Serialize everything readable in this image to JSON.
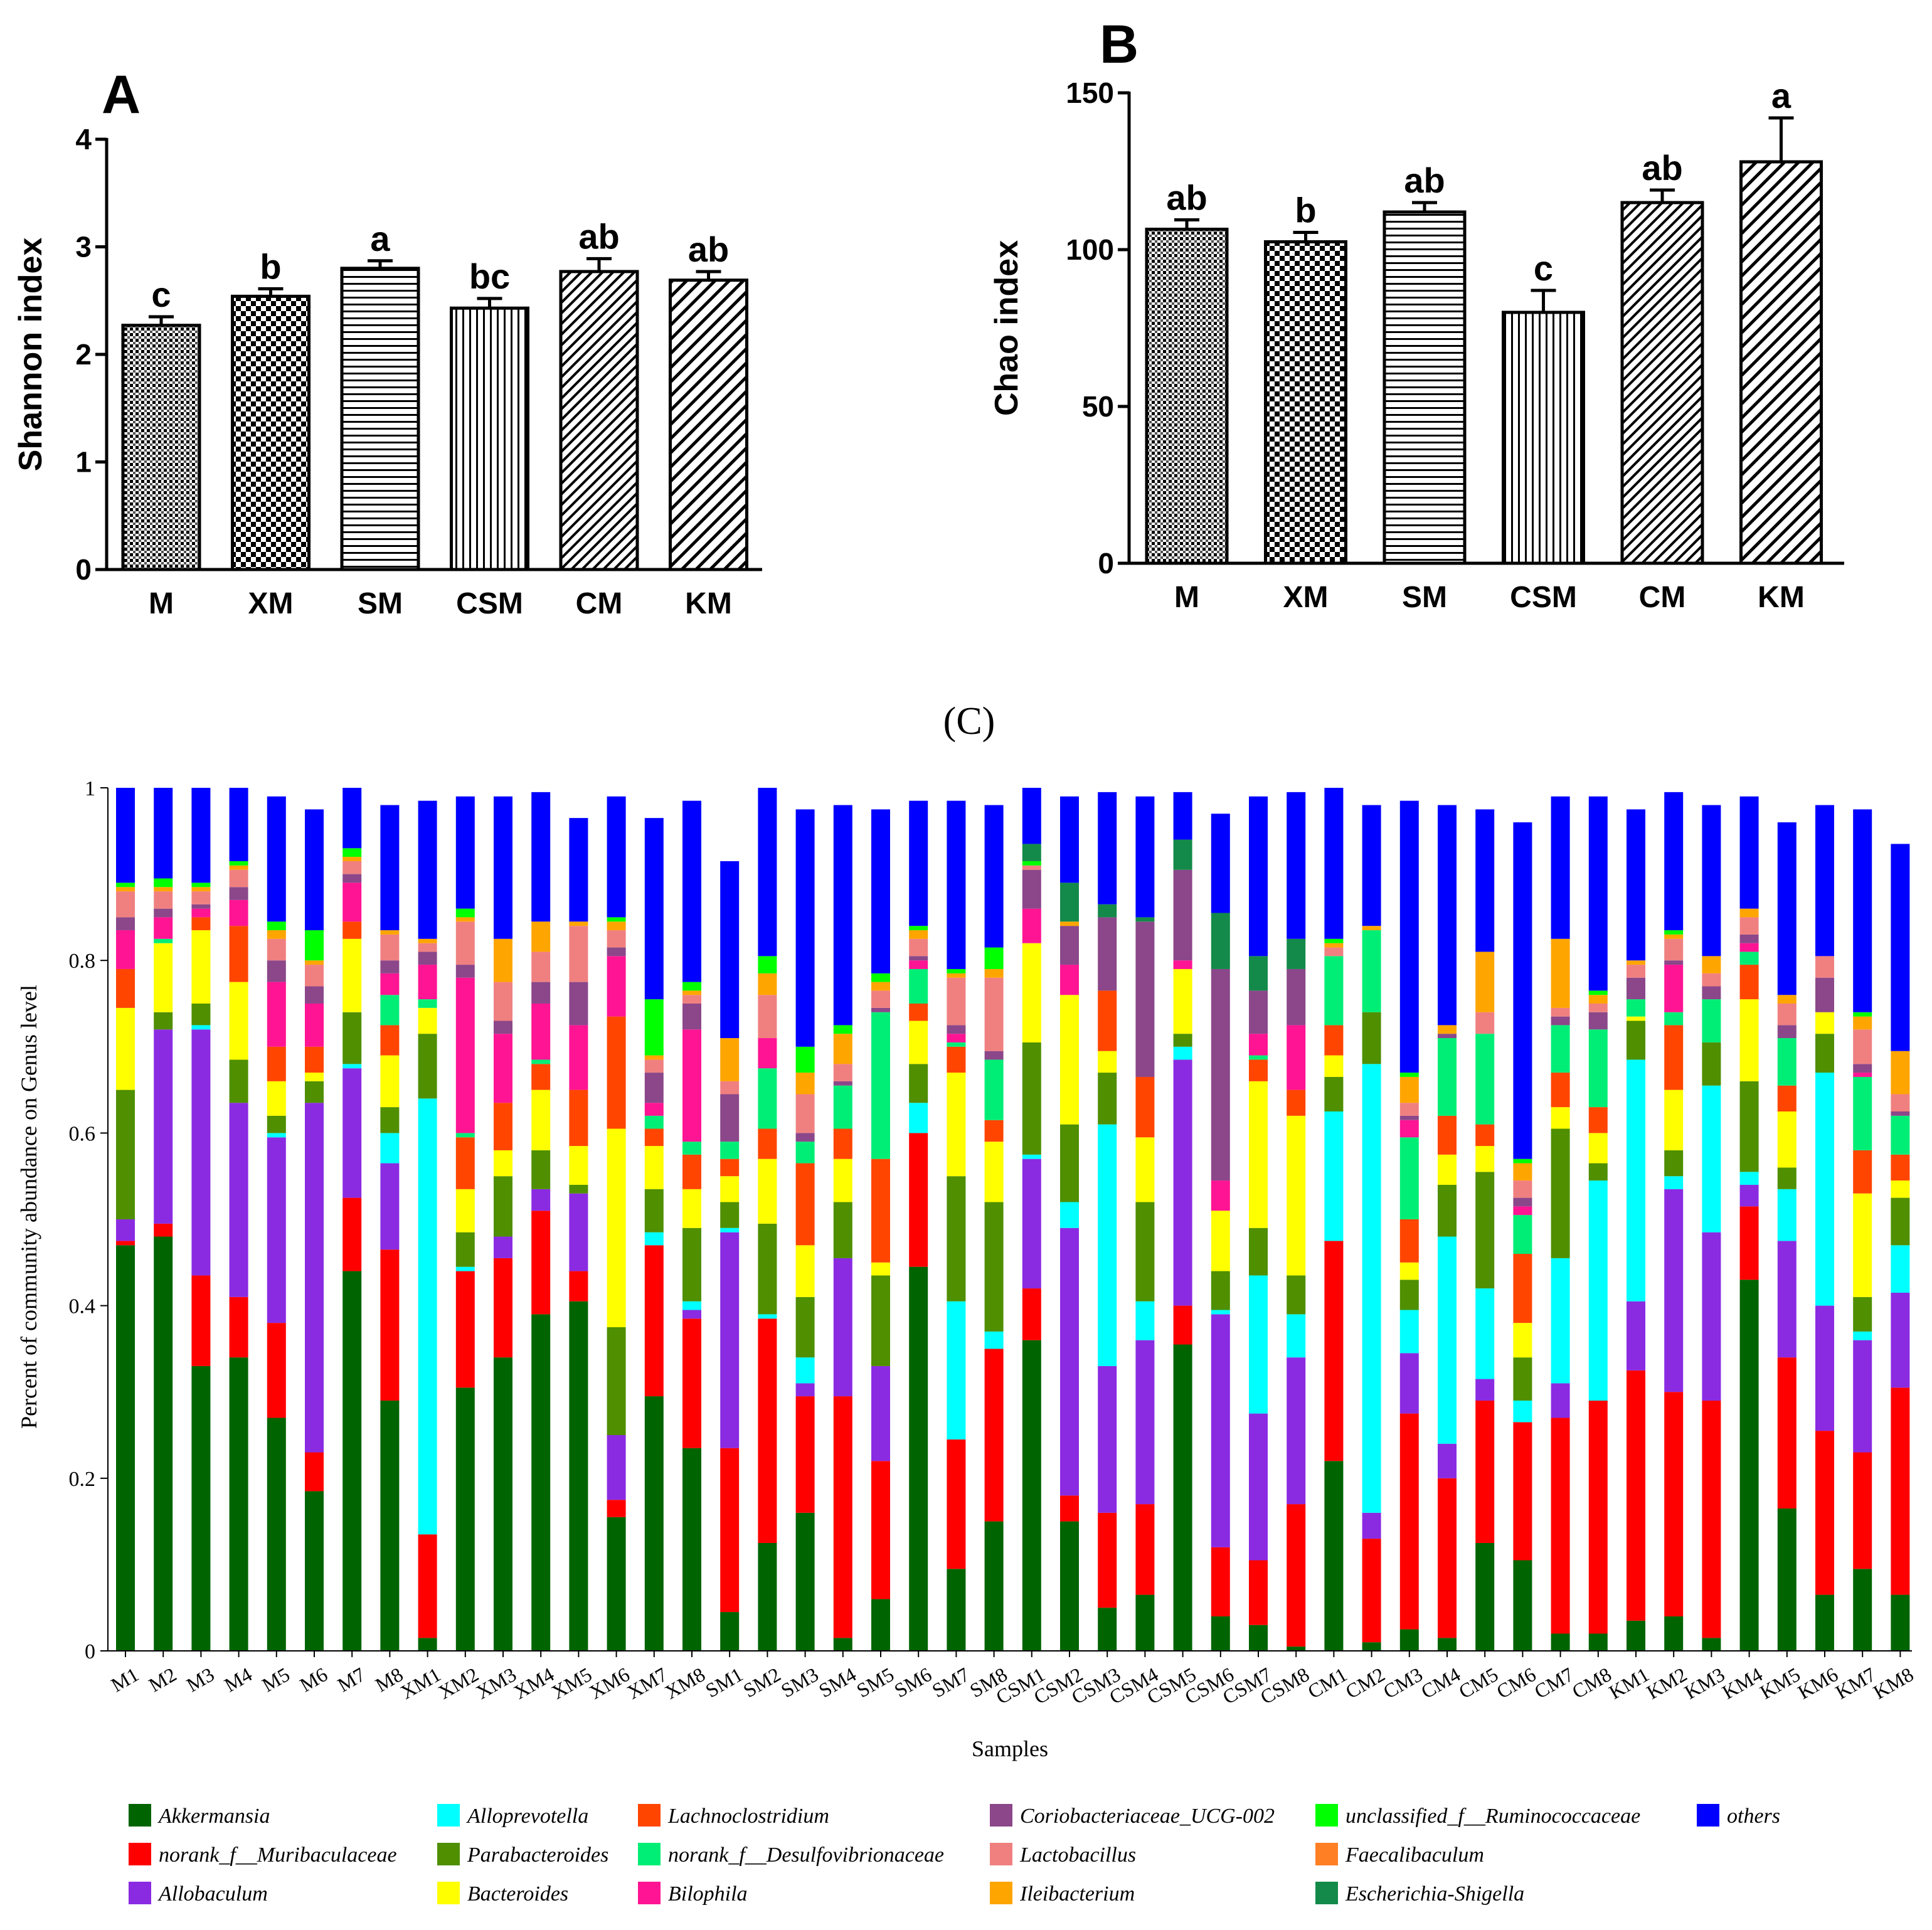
{
  "panel_a_label": "A",
  "panel_b_label": "B",
  "panel_c_label": "(C)",
  "chart_data": [
    {
      "id": "A",
      "type": "bar",
      "title": "",
      "xlabel": "",
      "ylabel": "Shannon index",
      "ylim": [
        0,
        4
      ],
      "yticks": [
        "0",
        "1",
        "2",
        "3",
        "4"
      ],
      "categories": [
        "M",
        "XM",
        "SM",
        "CSM",
        "CM",
        "KM"
      ],
      "values": [
        2.27,
        2.54,
        2.8,
        2.43,
        2.77,
        2.69
      ],
      "errors": [
        0.08,
        0.07,
        0.07,
        0.09,
        0.12,
        0.08
      ],
      "significance_letters": [
        "c",
        "b",
        "a",
        "bc",
        "ab",
        "ab"
      ],
      "patterns": [
        "pat-dense",
        "pat-check",
        "pat-hline",
        "pat-vline",
        "pat-diag",
        "pat-diag-wide"
      ]
    },
    {
      "id": "B",
      "type": "bar",
      "title": "",
      "xlabel": "",
      "ylabel": "Chao index",
      "ylim": [
        0,
        150
      ],
      "yticks": [
        "0",
        "50",
        "100",
        "150"
      ],
      "categories": [
        "M",
        "XM",
        "SM",
        "CSM",
        "CM",
        "KM"
      ],
      "values": [
        106.5,
        102.5,
        112,
        80,
        115,
        128
      ],
      "errors": [
        3,
        3,
        3,
        7,
        4,
        14
      ],
      "significance_letters": [
        "ab",
        "b",
        "ab",
        "c",
        "ab",
        "a"
      ],
      "patterns": [
        "pat-dense",
        "pat-check",
        "pat-hline",
        "pat-vline",
        "pat-diag",
        "pat-diag-wide"
      ]
    },
    {
      "id": "C",
      "type": "bar",
      "stacked": true,
      "title": "",
      "xlabel": "Samples",
      "ylabel": "Percent of community abundance on Genus level",
      "ylim": [
        0,
        1
      ],
      "yticks": [
        "0",
        "0.2",
        "0.4",
        "0.6",
        "0.8",
        "1"
      ],
      "categories": [
        "M1",
        "M2",
        "M3",
        "M4",
        "M5",
        "M6",
        "M7",
        "M8",
        "XM1",
        "XM2",
        "XM3",
        "XM4",
        "XM5",
        "XM6",
        "XM7",
        "XM8",
        "SM1",
        "SM2",
        "SM3",
        "SM4",
        "SM5",
        "SM6",
        "SM7",
        "SM8",
        "CSM1",
        "CSM2",
        "CSM3",
        "CSM4",
        "CSM5",
        "CSM6",
        "CSM7",
        "CSM8",
        "CM1",
        "CM2",
        "CM3",
        "CM4",
        "CM5",
        "CM6",
        "CM7",
        "CM8",
        "KM1",
        "KM2",
        "KM3",
        "KM4",
        "KM5",
        "KM6",
        "KM7",
        "KM8"
      ],
      "legend_position": "bottom",
      "series": [
        {
          "name": "Akkermansia",
          "color": "#006400",
          "values": [
            0.47,
            0.48,
            0.33,
            0.34,
            0.27,
            0.185,
            0.44,
            0.29,
            0.015,
            0.305,
            0.34,
            0.39,
            0.405,
            0.155,
            0.295,
            0.235,
            0.045,
            0.125,
            0.16,
            0.015,
            0.06,
            0.445,
            0.095,
            0.15,
            0.36,
            0.15,
            0.05,
            0.065,
            0.355,
            0.04,
            0.03,
            0.005,
            0.22,
            0.01,
            0.025,
            0.015,
            0.125,
            0.105,
            0.02,
            0.02,
            0.035,
            0.04,
            0.015,
            0.43,
            0.165,
            0.065,
            0.095,
            0.065
          ]
        },
        {
          "name": "norank_f__Muribaculaceae",
          "color": "#ff0000",
          "values": [
            0.005,
            0.015,
            0.105,
            0.07,
            0.11,
            0.045,
            0.085,
            0.175,
            0.12,
            0.135,
            0.115,
            0.12,
            0.035,
            0.02,
            0.175,
            0.15,
            0.19,
            0.26,
            0.135,
            0.28,
            0.16,
            0.155,
            0.15,
            0.2,
            0.06,
            0.03,
            0.11,
            0.105,
            0.045,
            0.08,
            0.075,
            0.165,
            0.255,
            0.12,
            0.25,
            0.185,
            0.165,
            0.16,
            0.25,
            0.27,
            0.29,
            0.26,
            0.275,
            0.085,
            0.175,
            0.19,
            0.135,
            0.24
          ]
        },
        {
          "name": "Allobaculum",
          "color": "#8a2be2",
          "values": [
            0.025,
            0.225,
            0.285,
            0.225,
            0.215,
            0.405,
            0.15,
            0.1,
            0,
            0,
            0.025,
            0.025,
            0.09,
            0.075,
            0,
            0.01,
            0.25,
            0,
            0.015,
            0.16,
            0.11,
            0,
            0,
            0,
            0.15,
            0.31,
            0.17,
            0.19,
            0.285,
            0.27,
            0.17,
            0.17,
            0,
            0.03,
            0.07,
            0.04,
            0.025,
            0,
            0.04,
            0,
            0.08,
            0.235,
            0.195,
            0.025,
            0.135,
            0.145,
            0.13,
            0.11
          ]
        },
        {
          "name": "Alloprevotella",
          "color": "#00ffff",
          "values": [
            0,
            0,
            0.005,
            0,
            0.005,
            0,
            0.005,
            0.035,
            0.505,
            0.005,
            0,
            0,
            0,
            0,
            0.015,
            0.01,
            0.005,
            0.005,
            0.03,
            0,
            0,
            0.035,
            0.16,
            0.02,
            0.005,
            0.03,
            0.28,
            0.045,
            0.015,
            0.005,
            0.16,
            0.05,
            0.15,
            0.52,
            0.05,
            0.24,
            0.105,
            0.025,
            0.145,
            0.255,
            0.28,
            0.015,
            0.17,
            0.015,
            0.06,
            0.27,
            0.01,
            0.055
          ]
        },
        {
          "name": "Parabacteroides",
          "color": "#4f8f00",
          "values": [
            0.15,
            0.02,
            0.025,
            0.05,
            0.02,
            0.025,
            0.06,
            0.03,
            0.075,
            0.04,
            0.07,
            0.045,
            0.01,
            0.125,
            0.05,
            0.085,
            0.03,
            0.105,
            0.07,
            0.065,
            0.105,
            0.045,
            0.145,
            0.15,
            0.13,
            0.09,
            0.06,
            0.115,
            0.015,
            0.045,
            0.055,
            0.045,
            0.04,
            0.06,
            0.035,
            0.06,
            0.135,
            0.05,
            0.15,
            0.02,
            0.045,
            0.03,
            0.05,
            0.105,
            0.025,
            0.045,
            0.04,
            0.055
          ]
        },
        {
          "name": "Bacteroides",
          "color": "#ffff00",
          "values": [
            0.095,
            0.08,
            0.085,
            0.09,
            0.04,
            0.01,
            0.085,
            0.06,
            0.03,
            0.05,
            0.03,
            0.07,
            0.045,
            0.23,
            0.05,
            0.045,
            0.03,
            0.075,
            0.06,
            0.05,
            0.015,
            0.05,
            0.12,
            0.07,
            0.115,
            0.15,
            0.025,
            0.075,
            0.075,
            0.07,
            0.17,
            0.185,
            0.025,
            0,
            0.02,
            0.035,
            0.03,
            0.04,
            0.025,
            0.035,
            0.005,
            0.07,
            0,
            0.095,
            0.065,
            0.025,
            0.12,
            0.02
          ]
        },
        {
          "name": "Lachnoclostridium",
          "color": "#ff4500",
          "values": [
            0.045,
            0,
            0.015,
            0.065,
            0.04,
            0.03,
            0.02,
            0.035,
            0,
            0.06,
            0.055,
            0.03,
            0.065,
            0.13,
            0.02,
            0.04,
            0.02,
            0.035,
            0.095,
            0.035,
            0.12,
            0.02,
            0.03,
            0.025,
            0,
            0,
            0.07,
            0.07,
            0,
            0,
            0.025,
            0.03,
            0.035,
            0,
            0.05,
            0.045,
            0.025,
            0.08,
            0.04,
            0.03,
            0,
            0.075,
            0,
            0.04,
            0.03,
            0,
            0.05,
            0.03
          ]
        },
        {
          "name": "norank_f__Desulfovibrionaceae",
          "color": "#00ee76",
          "values": [
            0,
            0.005,
            0,
            0,
            0,
            0,
            0,
            0.035,
            0.01,
            0.005,
            0,
            0.005,
            0,
            0,
            0.015,
            0.015,
            0.02,
            0.07,
            0.025,
            0.05,
            0.17,
            0.04,
            0.005,
            0.07,
            0,
            0,
            0,
            0,
            0,
            0,
            0.005,
            0,
            0.08,
            0.095,
            0.095,
            0.09,
            0.105,
            0.045,
            0.055,
            0.09,
            0.02,
            0.015,
            0.05,
            0.015,
            0.055,
            0,
            0.085,
            0.045
          ]
        },
        {
          "name": "Bilophila",
          "color": "#ff1493",
          "values": [
            0.045,
            0.025,
            0.01,
            0.03,
            0.075,
            0.05,
            0.045,
            0.025,
            0.04,
            0.18,
            0.08,
            0.065,
            0.075,
            0.07,
            0.015,
            0.13,
            0,
            0.035,
            0,
            0,
            0,
            0.01,
            0.01,
            0,
            0.04,
            0.035,
            0,
            0,
            0.01,
            0.035,
            0.025,
            0.075,
            0,
            0,
            0.02,
            0,
            0,
            0.01,
            0,
            0,
            0,
            0.055,
            0,
            0.01,
            0,
            0,
            0.005,
            0
          ]
        },
        {
          "name": "Coriobacteriaceae_UCG-002",
          "color": "#8b4789",
          "values": [
            0.015,
            0.01,
            0.005,
            0.015,
            0.025,
            0.02,
            0.01,
            0.015,
            0.015,
            0.015,
            0.015,
            0.025,
            0.05,
            0.01,
            0.035,
            0.03,
            0.055,
            0,
            0.01,
            0.005,
            0.005,
            0.005,
            0.01,
            0.01,
            0.045,
            0.045,
            0.085,
            0.18,
            0.105,
            0.245,
            0.05,
            0.065,
            0,
            0,
            0.005,
            0.005,
            0,
            0.01,
            0.01,
            0.02,
            0.025,
            0.005,
            0.015,
            0.01,
            0.015,
            0.04,
            0.01,
            0.005
          ]
        },
        {
          "name": "Lactobacillus",
          "color": "#f08080",
          "values": [
            0.03,
            0.02,
            0.015,
            0.02,
            0.025,
            0.025,
            0.015,
            0.03,
            0.01,
            0.05,
            0.045,
            0.035,
            0.065,
            0.02,
            0.015,
            0.01,
            0.015,
            0.05,
            0.045,
            0.02,
            0.02,
            0.02,
            0.055,
            0.085,
            0.005,
            0,
            0,
            0,
            0,
            0,
            0,
            0,
            0.01,
            0,
            0.015,
            0,
            0.025,
            0.02,
            0.01,
            0.01,
            0.015,
            0.025,
            0.015,
            0.02,
            0.025,
            0.025,
            0.04,
            0.02
          ]
        },
        {
          "name": "Ileibacterium",
          "color": "#ffa500",
          "values": [
            0.005,
            0.005,
            0.005,
            0.005,
            0.01,
            0.005,
            0.005,
            0.005,
            0.005,
            0.005,
            0.05,
            0.035,
            0.005,
            0.01,
            0.005,
            0.005,
            0.05,
            0.025,
            0.025,
            0.035,
            0.01,
            0.01,
            0.005,
            0.01,
            0,
            0.005,
            0,
            0,
            0,
            0,
            0,
            0,
            0.005,
            0.005,
            0.03,
            0.01,
            0.07,
            0.02,
            0.08,
            0.01,
            0.005,
            0.005,
            0.02,
            0.01,
            0.01,
            0,
            0.015,
            0.05
          ]
        },
        {
          "name": "unclassified_f__Ruminococcaceae",
          "color": "#00ff00",
          "values": [
            0.005,
            0.01,
            0.005,
            0.005,
            0.01,
            0.035,
            0.01,
            0,
            0,
            0.01,
            0,
            0,
            0,
            0.005,
            0.065,
            0.01,
            0,
            0.02,
            0.03,
            0.01,
            0.01,
            0.005,
            0.005,
            0.025,
            0.005,
            0,
            0,
            0,
            0,
            0,
            0,
            0,
            0.005,
            0,
            0.005,
            0,
            0,
            0.005,
            0,
            0.005,
            0,
            0.005,
            0,
            0,
            0,
            0,
            0.005,
            0
          ]
        },
        {
          "name": "Faecalibaculum",
          "color": "#ff7f24",
          "values": [
            0,
            0,
            0,
            0,
            0,
            0,
            0,
            0,
            0,
            0,
            0,
            0,
            0,
            0,
            0,
            0,
            0,
            0,
            0,
            0,
            0,
            0,
            0,
            0,
            0,
            0,
            0,
            0,
            0,
            0,
            0,
            0,
            0,
            0,
            0,
            0,
            0,
            0,
            0,
            0,
            0,
            0,
            0,
            0,
            0,
            0,
            0,
            0
          ]
        },
        {
          "name": "Escherichia-Shigella",
          "color": "#138a4a",
          "values": [
            0,
            0,
            0,
            0,
            0,
            0,
            0,
            0,
            0,
            0,
            0,
            0,
            0,
            0,
            0,
            0,
            0,
            0,
            0,
            0,
            0,
            0,
            0,
            0,
            0.02,
            0.045,
            0.015,
            0.005,
            0.035,
            0.065,
            0.04,
            0.035,
            0,
            0,
            0,
            0,
            0,
            0,
            0,
            0,
            0,
            0,
            0,
            0,
            0,
            0,
            0,
            0
          ]
        },
        {
          "name": "others",
          "color": "#0000ff",
          "values": [
            0.115,
            0.105,
            0.115,
            0.1,
            0.145,
            0.14,
            0.075,
            0.145,
            0.16,
            0.13,
            0.165,
            0.15,
            0.12,
            0.14,
            0.21,
            0.21,
            0.205,
            0.2,
            0.275,
            0.255,
            0.19,
            0.145,
            0.195,
            0.165,
            0.065,
            0.1,
            0.13,
            0.14,
            0.055,
            0.115,
            0.185,
            0.17,
            0.175,
            0.14,
            0.315,
            0.255,
            0.165,
            0.39,
            0.165,
            0.225,
            0.175,
            0.16,
            0.175,
            0.13,
            0.2,
            0.175,
            0.235,
            0.24
          ]
        }
      ]
    }
  ]
}
